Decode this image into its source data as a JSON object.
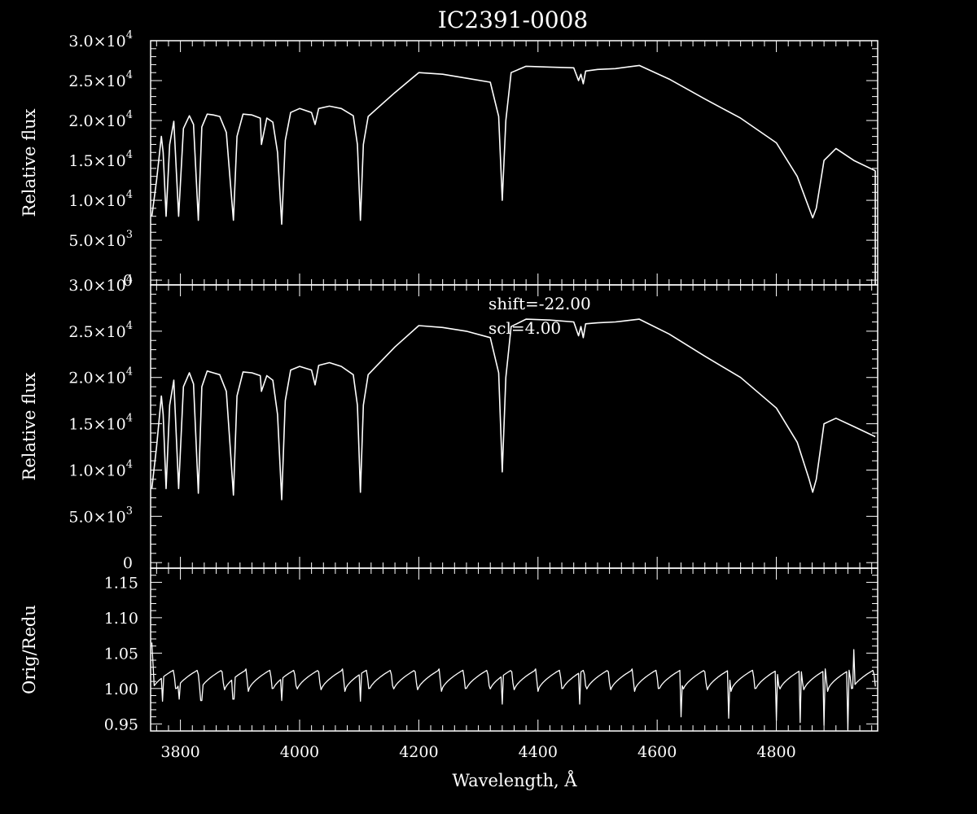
{
  "chart_data": [
    {
      "type": "line",
      "title": "IC2391-0008",
      "xlabel": "",
      "ylabel": "Relative flux",
      "xlim": [
        3750,
        4970
      ],
      "ylim": [
        -600,
        30000
      ],
      "yticks": [
        0,
        5000,
        10000,
        15000,
        20000,
        25000,
        30000
      ],
      "ytick_labels": [
        {
          "mant": "0",
          "exp": ""
        },
        {
          "mant": "5.0×10",
          "exp": "3"
        },
        {
          "mant": "1.0×10",
          "exp": "4"
        },
        {
          "mant": "1.5×10",
          "exp": "4"
        },
        {
          "mant": "2.0×10",
          "exp": "4"
        },
        {
          "mant": "2.5×10",
          "exp": "4"
        },
        {
          "mant": "3.0×10",
          "exp": "4"
        }
      ],
      "series": [
        {
          "name": "",
          "x": [
            3752,
            3760,
            3768,
            3771,
            3776,
            3782,
            3789,
            3797,
            3805,
            3815,
            3822,
            3830,
            3836,
            3845,
            3855,
            3866,
            3877,
            3884,
            3889,
            3895,
            3905,
            3920,
            3934,
            3936,
            3945,
            3955,
            3963,
            3970,
            3976,
            3985,
            4000,
            4020,
            4026,
            4032,
            4050,
            4070,
            4090,
            4097,
            4102,
            4107,
            4115,
            4130,
            4160,
            4200,
            4240,
            4280,
            4320,
            4334,
            4340,
            4346,
            4355,
            4380,
            4420,
            4460,
            4468,
            4472,
            4476,
            4480,
            4500,
            4530,
            4570,
            4620,
            4680,
            4740,
            4800,
            4835,
            4855,
            4861,
            4867,
            4880,
            4900,
            4930,
            4966
          ],
          "y": [
            8000,
            12500,
            18000,
            16000,
            8000,
            17000,
            19900,
            8000,
            19000,
            20600,
            19500,
            7500,
            19200,
            20800,
            20700,
            20500,
            18500,
            12000,
            7500,
            18000,
            20800,
            20700,
            20300,
            17000,
            20300,
            19800,
            16000,
            7000,
            17500,
            21000,
            21500,
            21000,
            19500,
            21500,
            21800,
            21500,
            20600,
            17000,
            7500,
            17000,
            20500,
            21500,
            23500,
            26000,
            25800,
            25300,
            24800,
            20500,
            10000,
            20000,
            26000,
            26800,
            26700,
            26600,
            25000,
            25800,
            24600,
            26200,
            26400,
            26500,
            26900,
            25200,
            22700,
            20300,
            17200,
            13000,
            9000,
            7800,
            9000,
            15000,
            16500,
            15000,
            13700
          ]
        }
      ]
    },
    {
      "type": "line",
      "title": "",
      "xlabel": "",
      "ylabel": "Relative flux",
      "xlim": [
        3750,
        4970
      ],
      "ylim": [
        -600,
        30000
      ],
      "annotations": [
        "shift=-22.00",
        "scl=4.00"
      ],
      "series": [
        {
          "name": "",
          "x": [
            3752,
            3760,
            3768,
            3771,
            3776,
            3782,
            3789,
            3797,
            3805,
            3815,
            3822,
            3830,
            3836,
            3845,
            3855,
            3866,
            3877,
            3884,
            3889,
            3895,
            3905,
            3920,
            3934,
            3936,
            3945,
            3955,
            3963,
            3970,
            3976,
            3985,
            4000,
            4020,
            4026,
            4032,
            4050,
            4070,
            4090,
            4097,
            4102,
            4107,
            4115,
            4130,
            4160,
            4200,
            4240,
            4280,
            4320,
            4334,
            4340,
            4346,
            4355,
            4380,
            4420,
            4460,
            4468,
            4472,
            4476,
            4480,
            4500,
            4530,
            4570,
            4620,
            4680,
            4740,
            4800,
            4835,
            4855,
            4861,
            4867,
            4880,
            4900,
            4930,
            4966
          ],
          "y": [
            8000,
            12500,
            18000,
            16000,
            8000,
            17000,
            19700,
            8000,
            19000,
            20500,
            19300,
            7500,
            19000,
            20700,
            20500,
            20300,
            18500,
            12000,
            7300,
            18000,
            20600,
            20500,
            20200,
            18500,
            20200,
            19700,
            16000,
            6800,
            17500,
            20800,
            21200,
            20800,
            19200,
            21300,
            21600,
            21200,
            20300,
            17000,
            7600,
            17000,
            20300,
            21300,
            23300,
            25600,
            25400,
            25000,
            24300,
            20500,
            9800,
            20000,
            25500,
            26300,
            26200,
            26000,
            24500,
            25500,
            24300,
            25800,
            25900,
            26000,
            26300,
            24700,
            22300,
            20000,
            16700,
            13000,
            9000,
            7600,
            9000,
            15000,
            15600,
            14700,
            13600
          ]
        }
      ]
    },
    {
      "type": "line",
      "title": "",
      "xlabel": "Wavelength, Å",
      "ylabel": "Orig/Redu",
      "xlim": [
        3750,
        4970
      ],
      "ylim": [
        0.94,
        1.17
      ],
      "yticks": [
        0.95,
        1.0,
        1.05,
        1.1,
        1.15
      ],
      "ytick_labels": [
        "0.95",
        "1.00",
        "1.05",
        "1.10",
        "1.15"
      ],
      "xticks": [
        3800,
        4000,
        4200,
        4400,
        4600,
        4800
      ],
      "xtick_labels": [
        "3800",
        "4000",
        "4200",
        "4400",
        "4600",
        "4800"
      ],
      "series": [
        {
          "name": "",
          "ripple": {
            "x_start": 3752,
            "x_end": 4966,
            "start_value": 1.065,
            "period": 40.5,
            "base": 0.996,
            "peak": 1.028,
            "dips": [
              {
                "x": 3770,
                "y": 0.982
              },
              {
                "x": 3798,
                "y": 0.985
              },
              {
                "x": 3835,
                "y": 0.983
              },
              {
                "x": 3889,
                "y": 0.985
              },
              {
                "x": 3970,
                "y": 0.983
              },
              {
                "x": 4102,
                "y": 0.982
              },
              {
                "x": 4340,
                "y": 0.978
              },
              {
                "x": 4470,
                "y": 0.978
              },
              {
                "x": 4640,
                "y": 0.96
              },
              {
                "x": 4720,
                "y": 0.958
              },
              {
                "x": 4800,
                "y": 0.955
              },
              {
                "x": 4840,
                "y": 0.952
              },
              {
                "x": 4880,
                "y": 0.948
              },
              {
                "x": 4920,
                "y": 0.942
              }
            ],
            "spikes": [
              {
                "x": 4930,
                "y": 1.055
              }
            ],
            "end_value": 1.003
          }
        }
      ]
    }
  ]
}
